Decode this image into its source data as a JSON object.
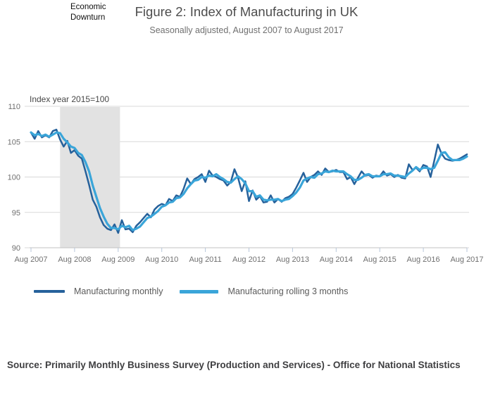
{
  "header": {
    "title": "Figure 2: Index of Manufacturing in UK",
    "subtitle": "Seasonally adjusted, August 2007 to August 2017"
  },
  "chart_data": {
    "type": "line",
    "y_axis_label": "Index year 2015=100",
    "frequency": "monthly",
    "x_start": "Aug 2007",
    "x_end": "Aug 2017",
    "x_tick_labels": [
      "Aug 2007",
      "Aug 2008",
      "Aug 2009",
      "Aug 2010",
      "Aug 2011",
      "Aug 2012",
      "Aug 2013",
      "Aug 2014",
      "Aug 2015",
      "Aug 2016",
      "Aug 2017"
    ],
    "y_ticks": [
      110,
      105,
      100,
      95,
      90
    ],
    "ylim": [
      90,
      110
    ],
    "grid": "horizontal",
    "legend_position": "bottom",
    "shaded_region": {
      "label": "Economic Downturn",
      "from_month_index": 8,
      "to_month_index": 24.5
    },
    "colors": {
      "band": "#e2e2e2",
      "grid": "#d9d9d9",
      "axis": "#c2c2c2",
      "x_tick": "#b7c6da",
      "tick_text": "#6f6f6f"
    },
    "series": [
      {
        "name": "Manufacturing monthly",
        "color": "#26619b",
        "width": 2.5,
        "values": [
          106.3,
          105.4,
          106.5,
          105.6,
          105.9,
          105.6,
          106.5,
          106.7,
          105.3,
          104.3,
          105.1,
          103.4,
          103.8,
          103.0,
          102.6,
          100.8,
          98.9,
          96.8,
          95.8,
          94.3,
          93.2,
          92.7,
          92.5,
          93.3,
          92.1,
          93.9,
          92.6,
          92.7,
          92.2,
          93.1,
          93.6,
          94.2,
          94.8,
          94.3,
          95.4,
          95.9,
          96.2,
          96.0,
          96.9,
          96.6,
          97.4,
          97.2,
          98.3,
          99.8,
          99.0,
          99.7,
          100.0,
          100.4,
          99.3,
          100.9,
          100.2,
          100.0,
          99.7,
          99.5,
          98.8,
          99.3,
          101.1,
          99.9,
          98.0,
          99.4,
          96.6,
          98.1,
          96.8,
          97.3,
          96.4,
          96.5,
          97.4,
          96.4,
          96.9,
          96.5,
          97.0,
          97.2,
          97.6,
          98.5,
          99.5,
          100.6,
          99.3,
          100.0,
          100.3,
          100.8,
          100.3,
          101.2,
          100.7,
          100.8,
          101.0,
          100.7,
          100.7,
          99.7,
          100.0,
          99.0,
          99.9,
          100.8,
          100.2,
          100.3,
          99.9,
          100.2,
          100.1,
          100.8,
          100.2,
          100.4,
          100.0,
          100.3,
          99.9,
          99.8,
          101.8,
          101.0,
          101.3,
          100.8,
          101.7,
          101.5,
          100.0,
          102.3,
          104.6,
          103.3,
          102.6,
          102.4,
          102.3,
          102.4,
          102.6,
          102.9,
          103.2
        ]
      },
      {
        "name": "Manufacturing rolling 3 months",
        "color": "#3aa5d9",
        "width": 3.2,
        "values": [
          106.3,
          105.9,
          106.1,
          105.8,
          106.0,
          105.7,
          106.0,
          106.3,
          106.2,
          105.4,
          104.9,
          104.3,
          104.1,
          103.4,
          103.1,
          102.1,
          100.8,
          98.8,
          97.2,
          95.6,
          94.4,
          93.4,
          92.8,
          92.8,
          92.6,
          93.1,
          92.9,
          93.1,
          92.5,
          92.7,
          93.0,
          93.6,
          94.2,
          94.4,
          94.8,
          95.2,
          95.8,
          96.0,
          96.4,
          96.5,
          97.0,
          97.1,
          97.6,
          98.4,
          99.0,
          99.5,
          99.6,
          100.0,
          99.9,
          100.2,
          100.1,
          100.4,
          100.0,
          99.7,
          99.3,
          99.2,
          99.7,
          100.1,
          99.7,
          99.1,
          98.0,
          98.0,
          97.2,
          97.4,
          96.8,
          96.7,
          96.8,
          96.8,
          96.9,
          96.6,
          96.8,
          96.9,
          97.3,
          97.8,
          98.5,
          99.5,
          99.8,
          100.0,
          99.9,
          100.4,
          100.5,
          100.8,
          100.7,
          100.9,
          100.8,
          100.8,
          100.8,
          100.4,
          100.1,
          99.6,
          99.6,
          99.9,
          100.3,
          100.4,
          100.1,
          100.1,
          100.1,
          100.4,
          100.4,
          100.5,
          100.2,
          100.2,
          100.1,
          100.0,
          100.5,
          100.9,
          101.4,
          101.0,
          101.3,
          101.3,
          101.1,
          101.3,
          102.3,
          103.4,
          103.5,
          102.8,
          102.4,
          102.4,
          102.4,
          102.6,
          102.9
        ]
      }
    ]
  },
  "source": {
    "text": "Source: Primarily Monthly Business Survey (Production and Services) - Office for National Statistics"
  }
}
